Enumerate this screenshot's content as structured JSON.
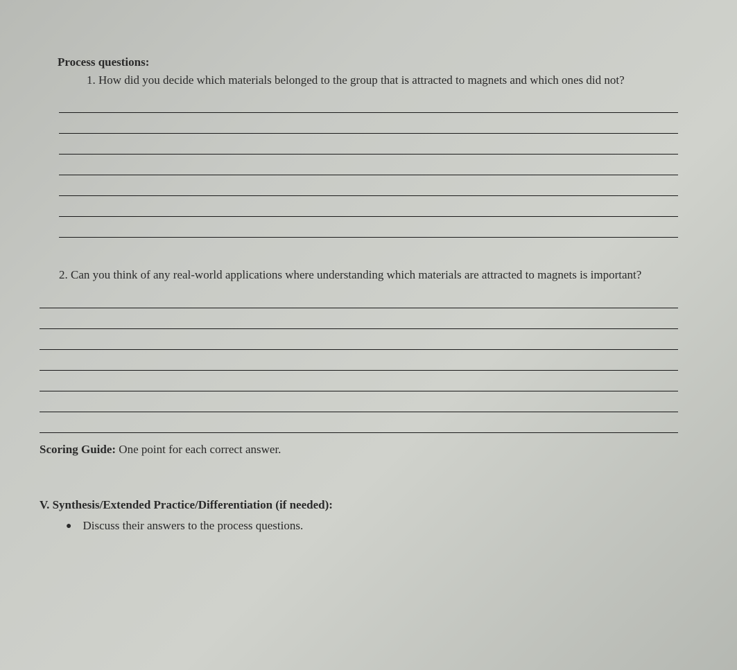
{
  "heading": "Process questions:",
  "question1": {
    "number": "1.",
    "text": "How did you decide which materials belonged to the group that is attracted to magnets and which ones did not?",
    "line_count": 7
  },
  "question2": {
    "number": "2.",
    "text": "Can you think of any real-world applications where understanding which materials are attracted to magnets is important?",
    "line_count": 7
  },
  "scoring": {
    "label": "Scoring Guide:",
    "text": "One point for each correct answer."
  },
  "sectionV": {
    "heading": "V. Synthesis/Extended Practice/Differentiation (if needed):",
    "bullet": "Discuss their answers to the process questions."
  },
  "colors": {
    "text": "#2a2a2a",
    "line": "#1a1a1a",
    "background": "#c8cac5"
  },
  "typography": {
    "body_fontsize": 17,
    "heading_weight": "bold",
    "font_family": "Georgia, Times New Roman, serif"
  }
}
